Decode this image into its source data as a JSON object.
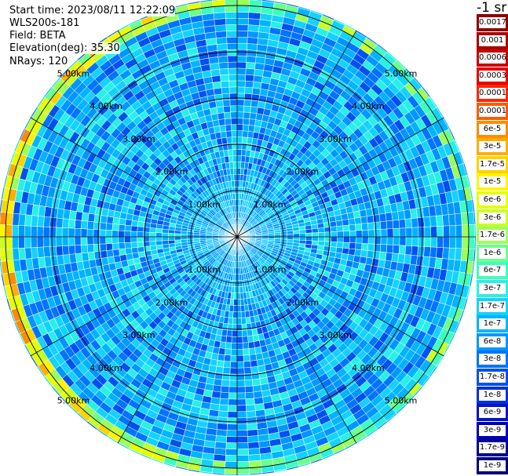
{
  "header": {
    "start_time": "Start time: 2023/08/11 12:22:09",
    "instrument": "WLS200s-181",
    "field": "Field: BETA",
    "elevation": "Elevation(deg): 35.30",
    "nrays": "NRays: 120"
  },
  "colorbar": {
    "title": "-1 sr",
    "labels": [
      "0.0017",
      "0.001",
      "0.0006",
      "0.0003",
      "0.00017",
      "0.0001",
      "6e-5",
      "3e-5",
      "1.7e-5",
      "1e-5",
      "6e-6",
      "3e-6",
      "1.7e-6",
      "1e-6",
      "6e-7",
      "3e-7",
      "1.7e-7",
      "1e-7",
      "6e-8",
      "3e-8",
      "1.7e-8",
      "1e-8",
      "6e-9",
      "3e-9",
      "1.7e-9",
      "1e-9"
    ],
    "colors": [
      "#8c0000",
      "#a80000",
      "#c80000",
      "#e80000",
      "#ff2600",
      "#ff5a00",
      "#ff8c00",
      "#ffae00",
      "#ffd200",
      "#fff500",
      "#e6ff00",
      "#c8ff28",
      "#9cff5a",
      "#6cff8c",
      "#3cffbe",
      "#28f0e6",
      "#14d2ff",
      "#00b4ff",
      "#0096ff",
      "#0073ff",
      "#0050f0",
      "#0032dc",
      "#0014c8",
      "#0000b4",
      "#000096",
      "#000078"
    ]
  },
  "chart_data": {
    "type": "heatmap",
    "projection": "polar PPI scan",
    "field": "BETA",
    "n_rays": 120,
    "range_unit": "km",
    "range_rings_km": [
      1.0,
      2.0,
      3.0,
      4.0,
      5.0
    ],
    "range_labels": [
      "1.00km",
      "2.00km",
      "3.00km",
      "4.00km",
      "5.00km"
    ],
    "spokes_deg": [
      0,
      30,
      60,
      90,
      120,
      150,
      180,
      210,
      240,
      270,
      300,
      330
    ],
    "color_scale": "log",
    "value_range": [
      1e-09,
      0.0017
    ],
    "typical_value": "1e-7 to 1e-6",
    "enhanced_ring": {
      "range_km_approx": 5.0,
      "peak_value_approx": "0.0001"
    }
  }
}
